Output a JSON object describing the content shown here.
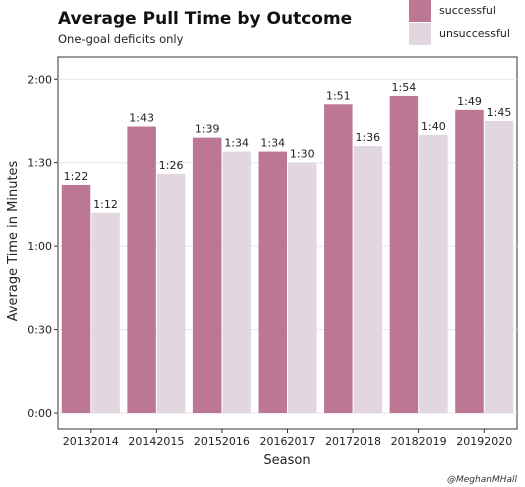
{
  "chart_data": {
    "type": "bar",
    "title": "Average Pull Time by Outcome",
    "subtitle": "One-goal deficits only",
    "xlabel": "Season",
    "ylabel": "Average Time in Minutes",
    "categories": [
      "20132014",
      "20142015",
      "20152016",
      "20162017",
      "20172018",
      "20182019",
      "20192020"
    ],
    "series": [
      {
        "name": "successful",
        "color": "#bc7795",
        "values": [
          82,
          103,
          99,
          94,
          111,
          114,
          109
        ],
        "labels": [
          "1:22",
          "1:43",
          "1:39",
          "1:34",
          "1:51",
          "1:54",
          "1:49"
        ]
      },
      {
        "name": "unsuccessful",
        "color": "#e2d7e0",
        "values": [
          72,
          86,
          94,
          90,
          96,
          100,
          105
        ],
        "labels": [
          "1:12",
          "1:26",
          "1:34",
          "1:30",
          "1:36",
          "1:40",
          "1:45"
        ]
      }
    ],
    "yticks": [
      0,
      30,
      60,
      90,
      120
    ],
    "ytick_labels": [
      "0:00",
      "0:30",
      "1:00",
      "1:30",
      "2:00"
    ],
    "ylim": [
      0,
      128
    ],
    "grid": true,
    "legend_position": "top-right",
    "credit": "@MeghanMHall"
  }
}
